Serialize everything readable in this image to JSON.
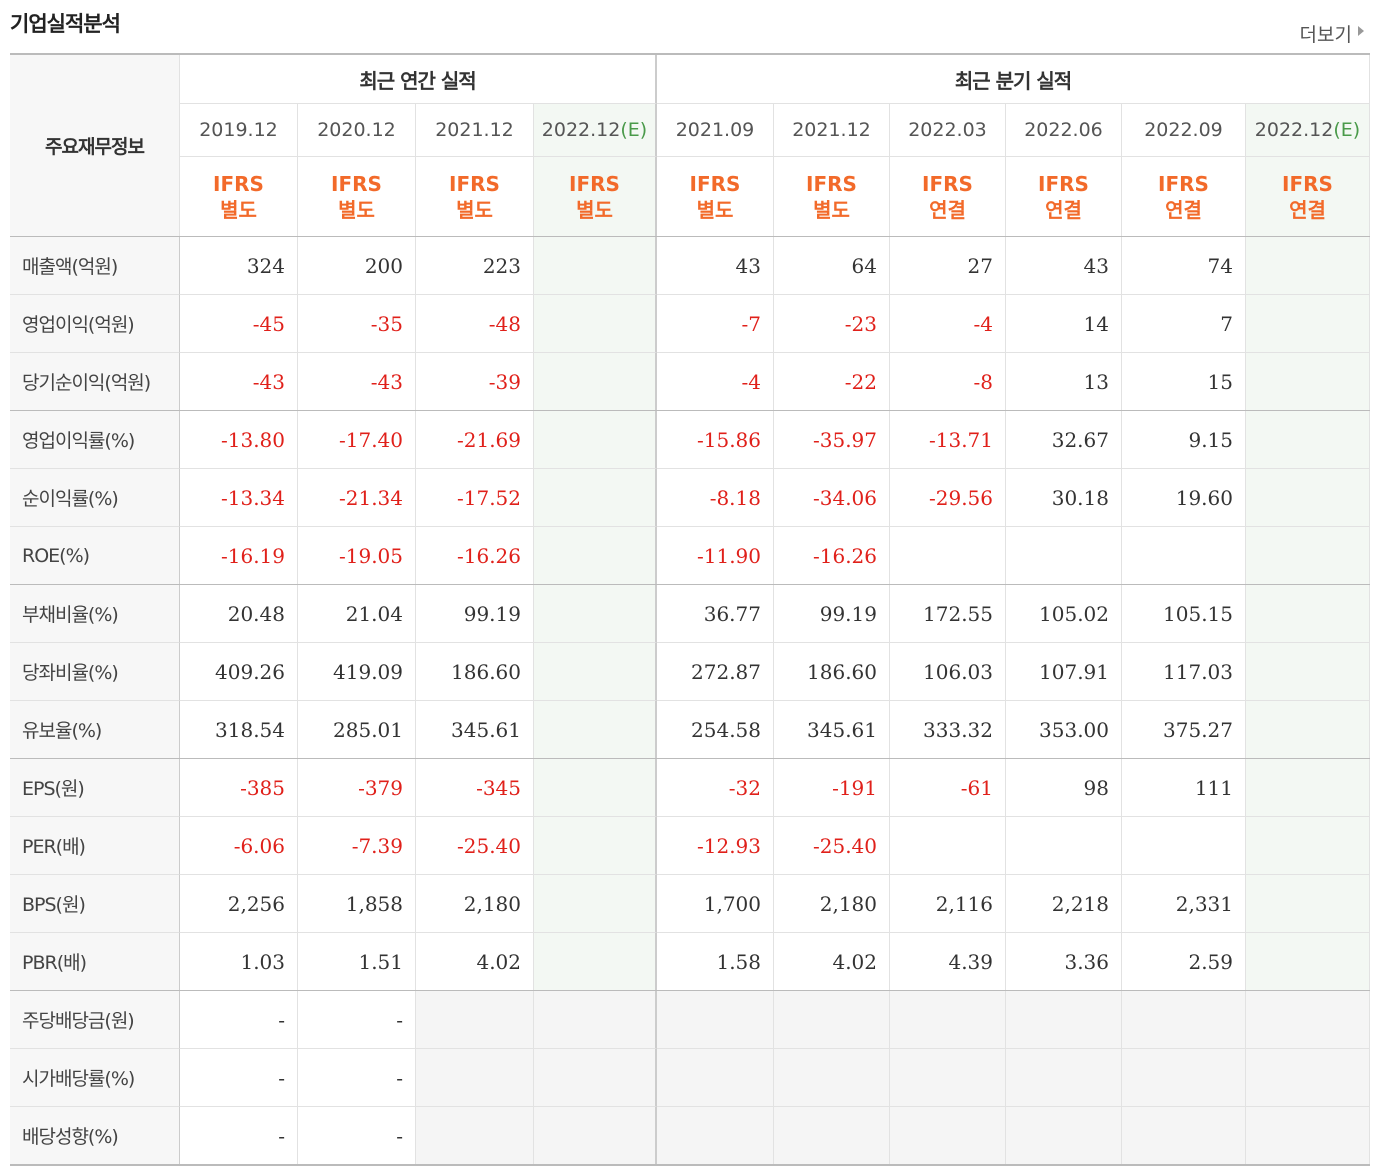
{
  "header": {
    "title": "기업실적분석",
    "more": "더보기"
  },
  "table": {
    "corner": "주요재무정보",
    "groups": [
      {
        "label": "최근 연간 실적",
        "span": 4
      },
      {
        "label": "최근 분기 실적",
        "span": 6
      }
    ],
    "columns": [
      {
        "date": "2019.12",
        "ifrs": "IFRS",
        "basis": "별도"
      },
      {
        "date": "2020.12",
        "ifrs": "IFRS",
        "basis": "별도"
      },
      {
        "date": "2021.12",
        "ifrs": "IFRS",
        "basis": "별도"
      },
      {
        "date": "2022.12",
        "estimate": "(E)",
        "ifrs": "IFRS",
        "basis": "별도"
      },
      {
        "date": "2021.09",
        "ifrs": "IFRS",
        "basis": "별도"
      },
      {
        "date": "2021.12",
        "ifrs": "IFRS",
        "basis": "별도"
      },
      {
        "date": "2022.03",
        "ifrs": "IFRS",
        "basis": "연결"
      },
      {
        "date": "2022.06",
        "ifrs": "IFRS",
        "basis": "연결"
      },
      {
        "date": "2022.09",
        "ifrs": "IFRS",
        "basis": "연결"
      },
      {
        "date": "2022.12",
        "estimate": "(E)",
        "ifrs": "IFRS",
        "basis": "연결"
      }
    ],
    "sections": [
      [
        {
          "label": "매출액(억원)",
          "values": [
            "324",
            "200",
            "223",
            null,
            "43",
            "64",
            "27",
            "43",
            "74",
            null
          ]
        },
        {
          "label": "영업이익(억원)",
          "values": [
            "-45",
            "-35",
            "-48",
            null,
            "-7",
            "-23",
            "-4",
            "14",
            "7",
            null
          ]
        },
        {
          "label": "당기순이익(억원)",
          "values": [
            "-43",
            "-43",
            "-39",
            null,
            "-4",
            "-22",
            "-8",
            "13",
            "15",
            null
          ]
        }
      ],
      [
        {
          "label": "영업이익률(%)",
          "values": [
            "-13.80",
            "-17.40",
            "-21.69",
            null,
            "-15.86",
            "-35.97",
            "-13.71",
            "32.67",
            "9.15",
            null
          ]
        },
        {
          "label": "순이익률(%)",
          "values": [
            "-13.34",
            "-21.34",
            "-17.52",
            null,
            "-8.18",
            "-34.06",
            "-29.56",
            "30.18",
            "19.60",
            null
          ]
        },
        {
          "label": "ROE(%)",
          "values": [
            "-16.19",
            "-19.05",
            "-16.26",
            null,
            "-11.90",
            "-16.26",
            null,
            null,
            null,
            null
          ]
        }
      ],
      [
        {
          "label": "부채비율(%)",
          "values": [
            "20.48",
            "21.04",
            "99.19",
            null,
            "36.77",
            "99.19",
            "172.55",
            "105.02",
            "105.15",
            null
          ]
        },
        {
          "label": "당좌비율(%)",
          "values": [
            "409.26",
            "419.09",
            "186.60",
            null,
            "272.87",
            "186.60",
            "106.03",
            "107.91",
            "117.03",
            null
          ]
        },
        {
          "label": "유보율(%)",
          "values": [
            "318.54",
            "285.01",
            "345.61",
            null,
            "254.58",
            "345.61",
            "333.32",
            "353.00",
            "375.27",
            null
          ]
        }
      ],
      [
        {
          "label": "EPS(원)",
          "values": [
            "-385",
            "-379",
            "-345",
            null,
            "-32",
            "-191",
            "-61",
            "98",
            "111",
            null
          ]
        },
        {
          "label": "PER(배)",
          "values": [
            "-6.06",
            "-7.39",
            "-25.40",
            null,
            "-12.93",
            "-25.40",
            null,
            null,
            null,
            null
          ]
        },
        {
          "label": "BPS(원)",
          "values": [
            "2,256",
            "1,858",
            "2,180",
            null,
            "1,700",
            "2,180",
            "2,116",
            "2,218",
            "2,331",
            null
          ]
        },
        {
          "label": "PBR(배)",
          "values": [
            "1.03",
            "1.51",
            "4.02",
            null,
            "1.58",
            "4.02",
            "4.39",
            "3.36",
            "2.59",
            null
          ]
        }
      ],
      [
        {
          "label": "주당배당금(원)",
          "values": [
            "-",
            "-",
            null,
            null,
            null,
            null,
            null,
            null,
            null,
            null
          ]
        },
        {
          "label": "시가배당률(%)",
          "values": [
            "-",
            "-",
            null,
            null,
            null,
            null,
            null,
            null,
            null,
            null
          ]
        },
        {
          "label": "배당성향(%)",
          "values": [
            "-",
            "-",
            null,
            null,
            null,
            null,
            null,
            null,
            null,
            null
          ]
        }
      ]
    ]
  }
}
